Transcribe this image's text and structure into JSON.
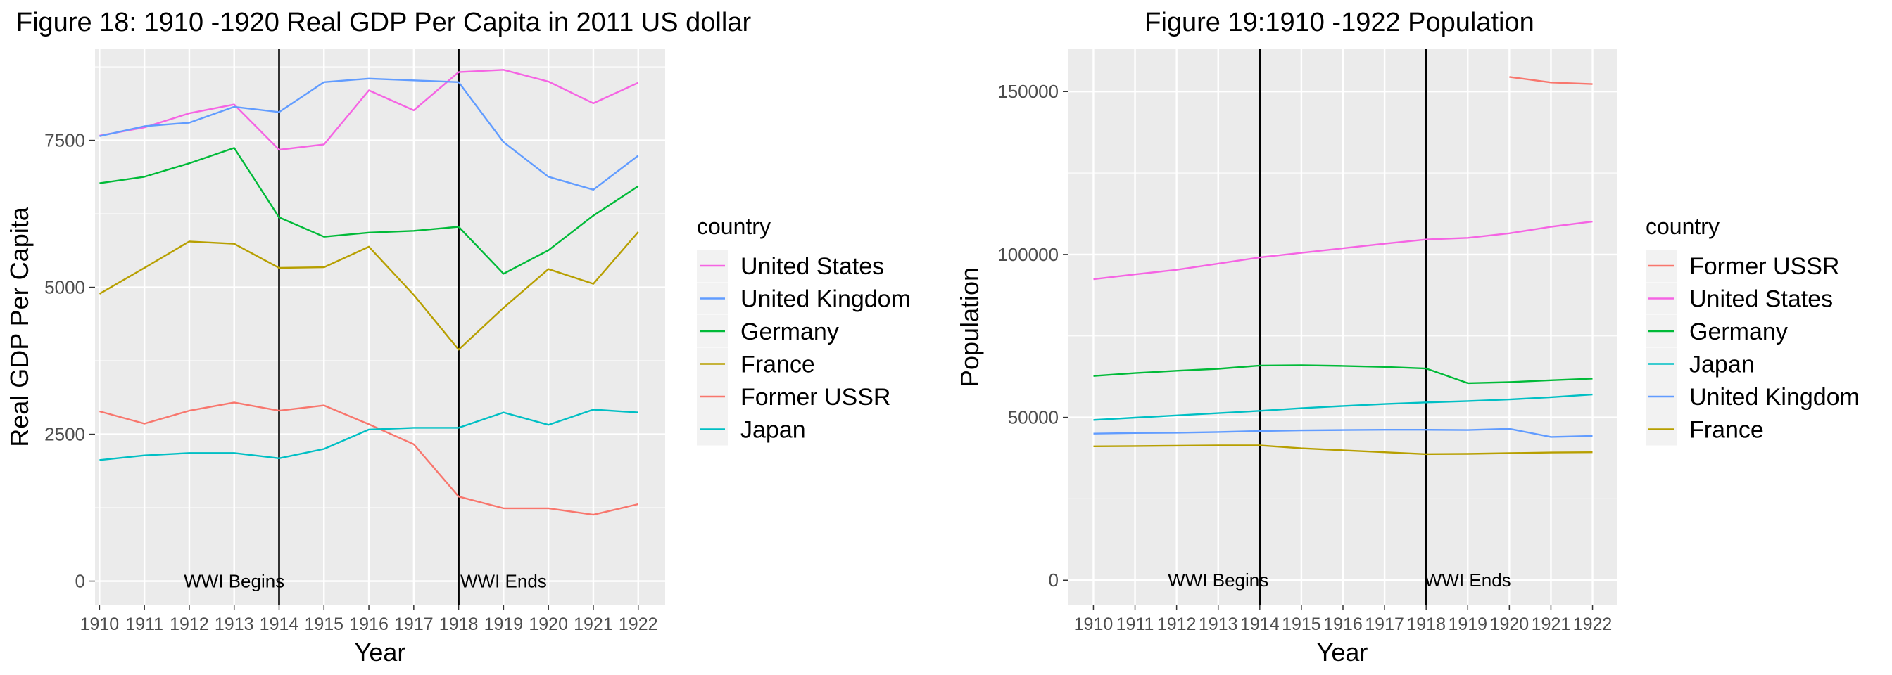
{
  "chart_data": [
    {
      "type": "line",
      "title": "Figure 18: 1910 -1920 Real GDP Per Capita in 2011 US dollar",
      "xlabel": "Year",
      "ylabel": "Real GDP Per Capita",
      "x": [
        1910,
        1911,
        1912,
        1913,
        1914,
        1915,
        1916,
        1917,
        1918,
        1919,
        1920,
        1921,
        1922
      ],
      "x_tick_labels": [
        "1910",
        "1911",
        "1912",
        "1913",
        "1914",
        "1915",
        "1916",
        "1917",
        "1918",
        "1919",
        "1920",
        "1921",
        "1922"
      ],
      "xlim": [
        1909.9,
        1922.6
      ],
      "ylim": [
        -400,
        9050
      ],
      "y_ticks": [
        0,
        2500,
        5000,
        7500
      ],
      "y_tick_labels": [
        "0",
        "2500",
        "5000",
        "7500"
      ],
      "grid": true,
      "legend_title": "country",
      "legend_placement": "right",
      "vlines": [
        {
          "x": 1914,
          "label": "WWI Begins",
          "label_x": 1913
        },
        {
          "x": 1918,
          "label": "WWI Ends",
          "label_x": 1919
        }
      ],
      "series": [
        {
          "name": "United States",
          "color": "#F564E3",
          "values": [
            7580,
            7720,
            7960,
            8110,
            7340,
            7430,
            8350,
            8010,
            8660,
            8700,
            8500,
            8130,
            8480
          ]
        },
        {
          "name": "United Kingdom",
          "color": "#619CFF",
          "values": [
            7570,
            7740,
            7800,
            8070,
            7980,
            8490,
            8550,
            8520,
            8490,
            7470,
            6880,
            6660,
            7240
          ]
        },
        {
          "name": "Germany",
          "color": "#00BA38",
          "values": [
            6770,
            6880,
            7110,
            7370,
            6190,
            5860,
            5930,
            5960,
            6030,
            5230,
            5630,
            6220,
            6720
          ]
        },
        {
          "name": "France",
          "color": "#B79F00",
          "values": [
            4890,
            5330,
            5780,
            5740,
            5330,
            5340,
            5690,
            4870,
            3940,
            4650,
            5310,
            5060,
            5940
          ]
        },
        {
          "name": "Former USSR",
          "color": "#F8766D",
          "values": [
            2890,
            2680,
            2900,
            3040,
            2900,
            2990,
            2670,
            2330,
            1440,
            1240,
            1240,
            1130,
            1310
          ]
        },
        {
          "name": "Japan",
          "color": "#00BFC4",
          "values": [
            2060,
            2140,
            2180,
            2180,
            2090,
            2250,
            2580,
            2610,
            2610,
            2870,
            2660,
            2920,
            2870
          ]
        }
      ]
    },
    {
      "type": "line",
      "title": "Figure 19:1910 -1922 Population",
      "xlabel": "Year",
      "ylabel": "Population",
      "x": [
        1910,
        1911,
        1912,
        1913,
        1914,
        1915,
        1916,
        1917,
        1918,
        1919,
        1920,
        1921,
        1922
      ],
      "x_tick_labels": [
        "1910",
        "1911",
        "1912",
        "1913",
        "1914",
        "1915",
        "1916",
        "1917",
        "1918",
        "1919",
        "1920",
        "1921",
        "1922"
      ],
      "xlim": [
        1909.4,
        1922.6
      ],
      "ylim": [
        -7500,
        163000
      ],
      "y_ticks": [
        0,
        50000,
        100000,
        150000
      ],
      "y_tick_labels": [
        "0",
        "50000",
        "100000",
        "150000"
      ],
      "grid": true,
      "legend_title": "country",
      "legend_placement": "right",
      "vlines": [
        {
          "x": 1914,
          "label": "WWI Begins",
          "label_x": 1913
        },
        {
          "x": 1918,
          "label": "WWI Ends",
          "label_x": 1919
        }
      ],
      "series": [
        {
          "name": "Former USSR",
          "color": "#F8766D",
          "values": [
            null,
            null,
            null,
            null,
            null,
            null,
            null,
            null,
            null,
            null,
            154500,
            152800,
            152300
          ]
        },
        {
          "name": "United States",
          "color": "#F564E3",
          "values": [
            92400,
            93900,
            95300,
            97200,
            99100,
            100500,
            101900,
            103300,
            104600,
            105100,
            106500,
            108500,
            110100
          ]
        },
        {
          "name": "Germany",
          "color": "#00BA38",
          "values": [
            62700,
            63600,
            64300,
            64900,
            65900,
            66000,
            65800,
            65500,
            65000,
            60500,
            60800,
            61400,
            61900
          ]
        },
        {
          "name": "Japan",
          "color": "#00BFC4",
          "values": [
            49200,
            49900,
            50600,
            51300,
            52000,
            52800,
            53500,
            54100,
            54600,
            55000,
            55500,
            56200,
            57000
          ]
        },
        {
          "name": "United Kingdom",
          "color": "#619CFF",
          "values": [
            45000,
            45200,
            45300,
            45500,
            45800,
            46000,
            46100,
            46200,
            46200,
            46100,
            46500,
            44000,
            44300
          ]
        },
        {
          "name": "France",
          "color": "#B79F00",
          "values": [
            41100,
            41200,
            41300,
            41400,
            41400,
            40500,
            39900,
            39300,
            38700,
            38800,
            39000,
            39200,
            39300
          ]
        }
      ]
    }
  ]
}
